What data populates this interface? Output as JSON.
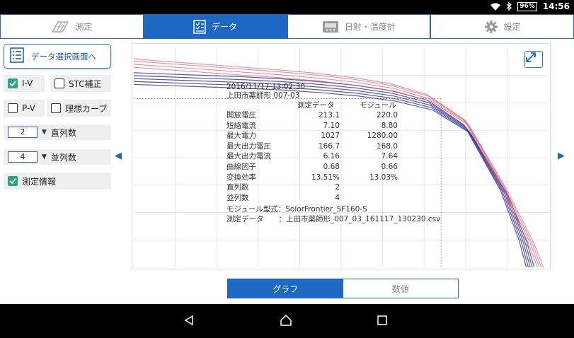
{
  "status": {
    "battery": "96%",
    "time": "14:56"
  },
  "tabs": [
    {
      "label": "測定",
      "icon": "pv-panel-icon",
      "active": false
    },
    {
      "label": "データ",
      "icon": "data-list-icon",
      "active": true
    },
    {
      "label": "日射・温度計",
      "icon": "meter-icon",
      "active": false
    },
    {
      "label": "設定",
      "icon": "gear-icon",
      "active": false
    }
  ],
  "sidebar": {
    "data_select_label": "データ選択画面へ",
    "iv_label": "I-V",
    "iv_checked": true,
    "stc_label": "STC補正",
    "stc_checked": false,
    "pv_label": "P-V",
    "pv_checked": false,
    "ideal_label": "理想カーブ",
    "ideal_checked": false,
    "series_value": "2",
    "series_label": "直列数",
    "parallel_value": "4",
    "parallel_label": "並列数",
    "info_label": "測定情報",
    "info_checked": true
  },
  "info": {
    "datetime": "2016/11/17 13:02:30",
    "site": "上田市薬師形 007-03",
    "col_measured": "測定データ",
    "col_module": "モジュール",
    "rows": [
      {
        "label": "開放電圧",
        "measured": "213.1",
        "module": "220.0"
      },
      {
        "label": "短絡電流",
        "measured": "7.10",
        "module": "8.80"
      },
      {
        "label": "最大電力",
        "measured": "1027",
        "module": "1280.00"
      },
      {
        "label": "最大出力電圧",
        "measured": "166.7",
        "module": "168.0"
      },
      {
        "label": "最大出力電流",
        "measured": "6.16",
        "module": "7.64"
      },
      {
        "label": "曲線因子",
        "measured": "0.68",
        "module": "0.66"
      },
      {
        "label": "変換効率",
        "measured": "13.51%",
        "module": "13.03%"
      },
      {
        "label": "直列数",
        "measured": "2",
        "module": ""
      },
      {
        "label": "並列数",
        "measured": "4",
        "module": ""
      }
    ],
    "module_type": "モジュール型式：SolorFrontier_SF160-S",
    "data_file": "測定データ　　：上田市薬師形_007_03_161117_130230.csv"
  },
  "view_toggle": {
    "graph_label": "グラフ",
    "values_label": "数値",
    "active": "graph"
  },
  "colors": {
    "accent": "#1c68c2",
    "check": "#27a886",
    "curve_blue": "#3a3a9a",
    "curve_red": "#e05a6a"
  },
  "chart_data": {
    "type": "line",
    "xlabel": "",
    "ylabel": "",
    "series": [
      {
        "color": "blue",
        "x": [
          0,
          20,
          40,
          60,
          80,
          100,
          120,
          140,
          160,
          180,
          200,
          210,
          214
        ],
        "y": [
          7.1,
          7.05,
          7.0,
          6.95,
          6.88,
          6.78,
          6.65,
          6.45,
          6.1,
          5.2,
          2.8,
          1.0,
          0.0
        ]
      },
      {
        "color": "red",
        "x": [
          0,
          20,
          40,
          60,
          80,
          100,
          120,
          140,
          160,
          180,
          200,
          215,
          220
        ],
        "y": [
          7.6,
          7.5,
          7.4,
          7.3,
          7.2,
          7.08,
          6.92,
          6.7,
          6.3,
          5.4,
          3.0,
          0.9,
          0.0
        ]
      }
    ],
    "grid": true
  }
}
